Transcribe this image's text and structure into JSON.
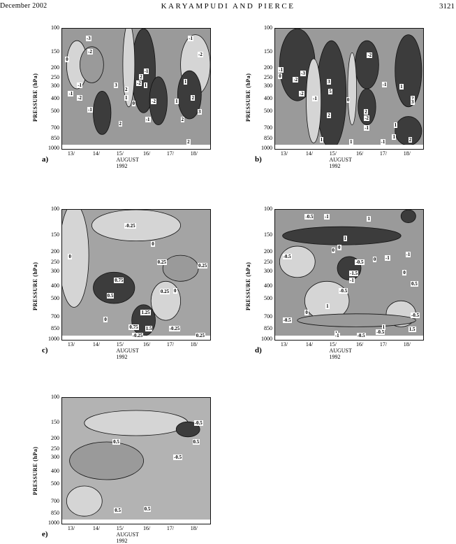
{
  "header": {
    "left": "December 2002",
    "center": "KARYAMPUDI AND PIERCE",
    "right": "3121"
  },
  "pressure_label": "PRESSURE (hPa)",
  "pressure_ticks": [
    "100",
    "150",
    "200",
    "250",
    "300",
    "400",
    "500",
    "700",
    "850",
    "1000"
  ],
  "date_ticks": [
    "13/",
    "14/",
    "15/",
    "16/",
    "17/",
    "18/"
  ],
  "date_title": "AUGUST 1992",
  "panels": [
    {
      "letter": "a)",
      "labels": [
        "-1",
        "-3",
        "-2",
        "0",
        "-1",
        "-2",
        "-1",
        "2",
        "1",
        "-1",
        "3",
        "-2",
        "-2",
        "-1",
        "1",
        "2",
        "0",
        "1",
        "2",
        "3",
        "-2",
        "-1",
        "1",
        "2",
        "2",
        "2"
      ]
    },
    {
      "letter": "b)",
      "labels": [
        "-1",
        "0",
        "-2",
        "-3",
        "-2",
        "-1",
        "1",
        "3",
        "2",
        "5",
        "0",
        "-2",
        "-2",
        "-1",
        "2",
        "1",
        "1",
        "-1",
        "1",
        "2",
        "1",
        "2",
        "3",
        "-1"
      ]
    },
    {
      "letter": "c)",
      "labels": [
        "-0.25",
        "0",
        "0",
        "0.25",
        "0.25",
        "0.75",
        "0.5",
        "0.25",
        "1.25",
        "0.75",
        "1.5",
        "-0.25",
        "-0.25",
        "0",
        "0",
        "0.25"
      ]
    },
    {
      "letter": "d)",
      "labels": [
        "-0.5",
        "-1",
        "1",
        "0",
        "1",
        "-0.5",
        "0",
        "-1.5",
        "-1",
        "-0.5",
        "-1",
        "0",
        "-1",
        "-0.5",
        "1",
        "0",
        "-0.5",
        "-0.5",
        "-0.5",
        "1",
        "-1",
        "-0.5",
        "1",
        "0.5",
        "0",
        "1.5"
      ]
    },
    {
      "letter": "e)",
      "labels": [
        "-0.5",
        "0.5",
        "0.5",
        "-0.5",
        "0.5",
        "0.5"
      ]
    }
  ]
}
